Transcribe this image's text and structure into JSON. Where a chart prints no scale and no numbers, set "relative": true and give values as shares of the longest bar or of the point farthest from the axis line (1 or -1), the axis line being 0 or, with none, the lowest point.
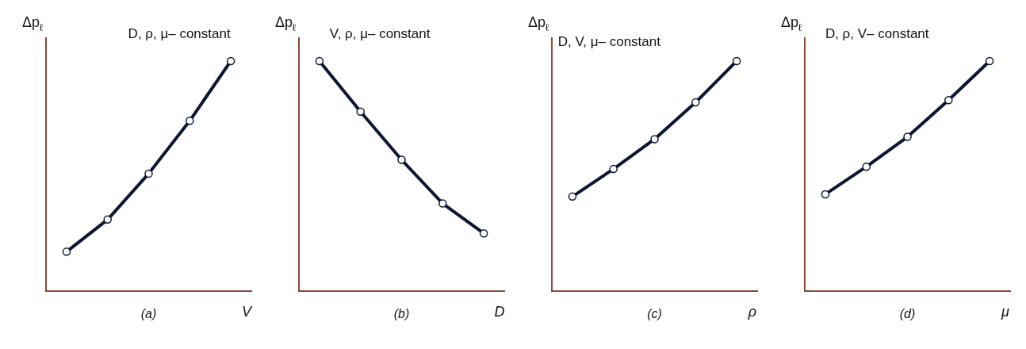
{
  "chart_data": [
    {
      "type": "line",
      "relative": true,
      "title": "(a)",
      "xlabel": "V",
      "ylabel": "Δp$_{ℓ}$",
      "annotations": [
        "D, ρ, μ– constant"
      ],
      "marker": "circle",
      "categories": [
        null,
        null,
        null,
        null,
        null
      ],
      "series": [
        {
          "color": "#0d1533",
          "values": [
            0.17,
            0.31,
            0.51,
            0.74,
            1
          ]
        }
      ]
    },
    {
      "type": "line",
      "relative": true,
      "title": "(b)",
      "xlabel": "D",
      "ylabel": "Δp$_{ℓ}$",
      "annotations": [
        "V, ρ, μ– constant"
      ],
      "marker": "circle",
      "categories": [
        null,
        null,
        null,
        null,
        null
      ],
      "series": [
        {
          "color": "#0d1533",
          "values": [
            1,
            0.78,
            0.57,
            0.38,
            0.25
          ]
        }
      ]
    },
    {
      "type": "line",
      "relative": true,
      "title": "(c)",
      "xlabel": "ρ",
      "ylabel": "Δp$_{ℓ}$",
      "annotations": [
        "D, V, μ– constant"
      ],
      "marker": "circle",
      "categories": [
        null,
        null,
        null,
        null,
        null
      ],
      "series": [
        {
          "color": "#0d1533",
          "values": [
            0.41,
            0.53,
            0.66,
            0.82,
            1
          ]
        }
      ]
    },
    {
      "type": "line",
      "relative": true,
      "title": "(d)",
      "xlabel": "μ",
      "ylabel": "Δp$_{ℓ}$",
      "annotations": [
        "D, ρ, V– constant"
      ],
      "marker": "circle",
      "categories": [
        null,
        null,
        null,
        null,
        null
      ],
      "series": [
        {
          "color": "#0d1533",
          "values": [
            0.42,
            0.54,
            0.67,
            0.83,
            1
          ]
        }
      ]
    }
  ]
}
